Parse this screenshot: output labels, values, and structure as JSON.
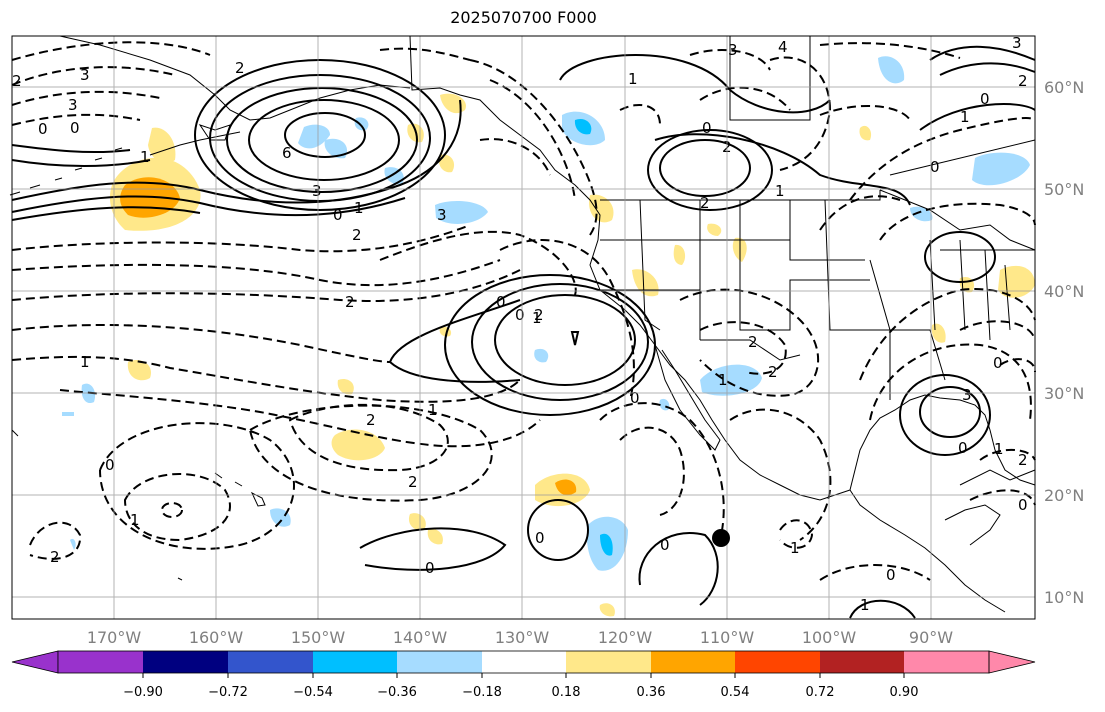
{
  "title": "2025070700 F000",
  "map": {
    "lon_range": [
      -180,
      -80
    ],
    "lat_range": [
      8,
      66
    ],
    "grid": true,
    "lat_labels": [
      "60°N",
      "50°N",
      "40°N",
      "30°N",
      "20°N",
      "10°N"
    ],
    "lon_labels": [
      "170°W",
      "160°W",
      "150°W",
      "140°W",
      "130°W",
      "120°W",
      "110°W",
      "100°W",
      "90°W"
    ],
    "marker": {
      "name": "location-dot",
      "lon": -110.0,
      "lat": 16.0
    }
  },
  "colorbar": {
    "tick_labels": [
      "−0.90",
      "−0.72",
      "−0.54",
      "−0.36",
      "−0.18",
      "0.18",
      "0.36",
      "0.54",
      "0.72",
      "0.90"
    ],
    "colors": [
      "#9932cc",
      "#000080",
      "#3355cc",
      "#00bfff",
      "#a6dcff",
      "#ffffff",
      "#ffe88a",
      "#ffa500",
      "#ff4500",
      "#b22222",
      "#ff88aa"
    ],
    "extend": "both"
  },
  "contour_labels": [
    "2",
    "3",
    "3",
    "0",
    "0",
    "2",
    "1",
    "6",
    "3",
    "0",
    "1",
    "2",
    "3",
    "2",
    "1",
    "1",
    "0",
    "2",
    "2",
    "1",
    "4",
    "3",
    "2",
    "0",
    "1",
    "2",
    "0",
    "1",
    "0",
    "3",
    "2",
    "1",
    "0",
    "2",
    "2",
    "2",
    "1",
    "0",
    "1",
    "0",
    "2",
    "1",
    "0",
    "0",
    "0",
    "0",
    "1",
    "0",
    "0",
    "1",
    "3",
    "0",
    "2"
  ],
  "colors": {
    "shade_positive": "#ffe88a",
    "shade_positive_strong": "#ffa500",
    "shade_negative": "#a6dcff",
    "shade_negative_strong": "#00bfff"
  }
}
